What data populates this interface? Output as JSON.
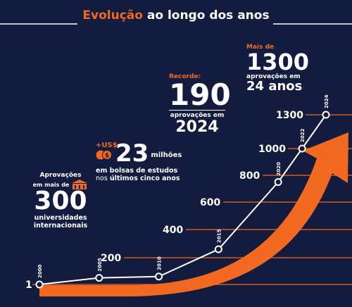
{
  "header": {
    "title_accent": "Evolução",
    "title_rest": "ao longo dos anos"
  },
  "colors": {
    "background": "#131b3e",
    "accent": "#f26a21",
    "line": "#ffffff"
  },
  "callouts": {
    "univ": {
      "line1": "Aprovações",
      "line2": "em mais de",
      "number": "300",
      "line3": "universidades",
      "line4": "internacionais",
      "icon": "university-building-icon"
    },
    "grants": {
      "prefix": "+US$",
      "number": "23",
      "line1": "milhões",
      "line2": "em bolsas de estudos",
      "line3_a": "nos",
      "line3_b": "últimos cinco anos",
      "icon": "coins-icon"
    },
    "record": {
      "label": "Recorde:",
      "number": "190",
      "line1": "aprovações em",
      "year": "2024"
    },
    "total": {
      "label": "Mais de",
      "number": "1300",
      "line1": "aprovações em",
      "line2": "24 anos"
    }
  },
  "chart_data": {
    "type": "line",
    "title": "Evolução ao longo dos anos",
    "x": [
      "2000",
      "2005",
      "2010",
      "2015",
      "2020",
      "2022",
      "2024"
    ],
    "y": [
      1,
      50,
      60,
      260,
      750,
      1000,
      1300
    ],
    "y_tick_labels": [
      "1",
      "200",
      "400",
      "600",
      "800",
      "1000",
      "1300"
    ],
    "y_tick_values": [
      1,
      200,
      400,
      600,
      800,
      1000,
      1300
    ],
    "grid": true
  }
}
